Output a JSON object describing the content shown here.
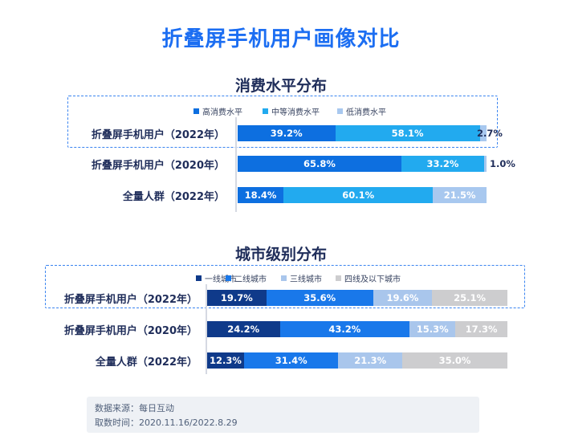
{
  "title": "折叠屏手机用户画像对比",
  "chart_data": [
    {
      "type": "bar",
      "stacked": true,
      "orientation": "horizontal",
      "title": "消费水平分布",
      "categories": [
        "折叠屏手机用户（2022年）",
        "折叠屏手机用户（2020年）",
        "全量人群（2022年）"
      ],
      "series": [
        {
          "name": "高消费水平",
          "color": "#0d6fe0",
          "values": [
            39.2,
            65.8,
            18.4
          ]
        },
        {
          "name": "中等消费水平",
          "color": "#22aaef",
          "values": [
            58.1,
            33.2,
            60.1
          ]
        },
        {
          "name": "低消费水平",
          "color": "#a8c8ef",
          "values": [
            2.7,
            1.0,
            21.5
          ]
        }
      ],
      "labels": [
        [
          "39.2%",
          "58.1%",
          "2.7%"
        ],
        [
          "65.8%",
          "33.2%",
          "1.0%"
        ],
        [
          "18.4%",
          "60.1%",
          "21.5%"
        ]
      ],
      "highlighted_category": "折叠屏手机用户（2022年）",
      "legend_position": "top"
    },
    {
      "type": "bar",
      "stacked": true,
      "orientation": "horizontal",
      "title": "城市级别分布",
      "categories": [
        "折叠屏手机用户（2022年）",
        "折叠屏手机用户（2020年）",
        "全量人群（2022年）"
      ],
      "series": [
        {
          "name": "一线城市",
          "color": "#0f3a8a",
          "values": [
            19.7,
            24.2,
            12.3
          ]
        },
        {
          "name": "二线城市",
          "color": "#1978ea",
          "values": [
            35.6,
            43.2,
            31.4
          ]
        },
        {
          "name": "三线城市",
          "color": "#a9c6ec",
          "values": [
            19.6,
            15.3,
            21.3
          ]
        },
        {
          "name": "四线及以下城市",
          "color": "#cdcdcf",
          "values": [
            25.1,
            17.3,
            35.0
          ]
        }
      ],
      "labels": [
        [
          "19.7%",
          "35.6%",
          "19.6%",
          "25.1%"
        ],
        [
          "24.2%",
          "43.2%",
          "15.3%",
          "17.3%"
        ],
        [
          "12.3%",
          "31.4%",
          "21.3%",
          "35.0%"
        ]
      ],
      "highlighted_category": "折叠屏手机用户（2022年）",
      "legend_position": "top"
    }
  ],
  "source": {
    "line1": "数据来源：每日互动",
    "line2": "取数时间：2020.11.16/2022.8.29"
  }
}
